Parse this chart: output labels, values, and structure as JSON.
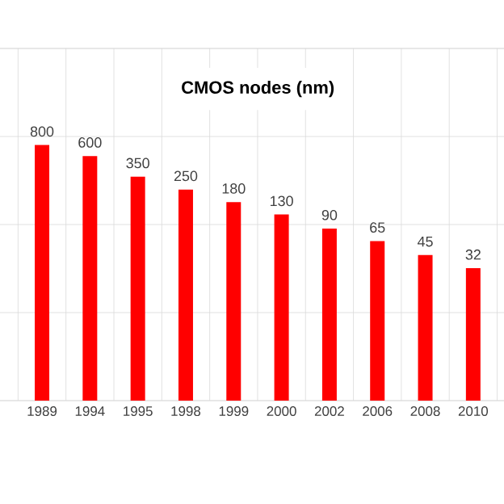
{
  "chart_data": {
    "type": "bar",
    "title": "CMOS nodes (nm)",
    "categories": [
      "1989",
      "1994",
      "1995",
      "1998",
      "1999",
      "2000",
      "2002",
      "2006",
      "2008",
      "2010"
    ],
    "values": [
      800,
      600,
      350,
      250,
      180,
      130,
      90,
      65,
      45,
      32
    ],
    "color": "#ff0000",
    "data_labels": true,
    "log": "y",
    "ylim": [
      1,
      10000
    ],
    "yticks": [
      {
        "value": 1,
        "label": null
      },
      {
        "value": 10,
        "label": null
      },
      {
        "value": 100,
        "label": null
      },
      {
        "value": 1000,
        "label": null
      },
      {
        "value": 10000,
        "label": null
      }
    ],
    "tick_labels": "x",
    "grid": true
  }
}
